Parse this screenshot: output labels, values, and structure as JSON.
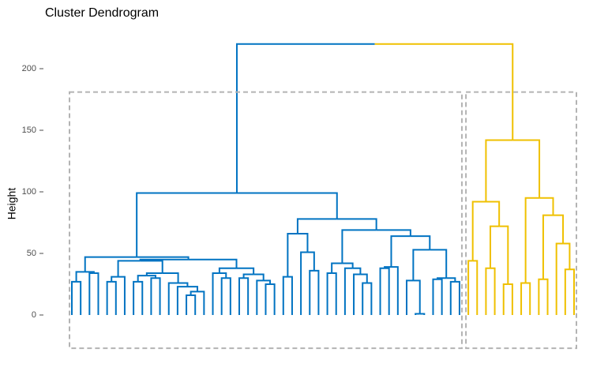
{
  "chart_data": {
    "type": "dendrogram",
    "title": "Cluster Dendrogram",
    "y_label": "Height",
    "ylim": [
      -30,
      230
    ],
    "yticks": [
      0,
      50,
      100,
      150,
      200
    ],
    "cluster_colors": [
      "#0073C2",
      "#EFC000"
    ],
    "rect_border": "#b3b3b3",
    "rect_ylim": [
      -27,
      181
    ],
    "tree": {
      "height": 220,
      "children": [
        {
          "height": 99,
          "children": [
            {
              "height": 47,
              "children": [
                {
                  "height": 35,
                  "children": [
                    {
                      "height": 27,
                      "children": [
                        0,
                        0
                      ]
                    },
                    {
                      "height": 34,
                      "children": [
                        0,
                        0
                      ]
                    }
                  ]
                },
                {
                  "height": 45,
                  "children": [
                    {
                      "height": 44,
                      "children": [
                        {
                          "height": 31,
                          "children": [
                            {
                              "height": 27,
                              "children": [
                                0,
                                0
                              ]
                            },
                            0
                          ]
                        },
                        {
                          "height": 34,
                          "children": [
                            {
                              "height": 32,
                              "children": [
                                {
                                  "height": 27,
                                  "children": [
                                    0,
                                    0
                                  ]
                                },
                                {
                                  "height": 30,
                                  "children": [
                                    0,
                                    0
                                  ]
                                }
                              ]
                            },
                            {
                              "height": 26,
                              "children": [
                                0,
                                {
                                  "height": 23,
                                  "children": [
                                    0,
                                    {
                                      "height": 19,
                                      "children": [
                                        {
                                          "height": 16,
                                          "children": [
                                            0,
                                            0
                                          ]
                                        },
                                        0
                                      ]
                                    }
                                  ]
                                }
                              ]
                            }
                          ]
                        }
                      ]
                    },
                    {
                      "height": 38,
                      "children": [
                        {
                          "height": 34,
                          "children": [
                            0,
                            {
                              "height": 30,
                              "children": [
                                0,
                                0
                              ]
                            }
                          ]
                        },
                        {
                          "height": 33,
                          "children": [
                            {
                              "height": 30,
                              "children": [
                                0,
                                0
                              ]
                            },
                            {
                              "height": 28,
                              "children": [
                                0,
                                {
                                  "height": 25,
                                  "children": [
                                    0,
                                    0
                                  ]
                                }
                              ]
                            }
                          ]
                        }
                      ]
                    }
                  ]
                }
              ]
            },
            {
              "height": 78,
              "children": [
                {
                  "height": 66,
                  "children": [
                    {
                      "height": 31,
                      "children": [
                        0,
                        0
                      ]
                    },
                    {
                      "height": 51,
                      "children": [
                        0,
                        {
                          "height": 36,
                          "children": [
                            0,
                            0
                          ]
                        }
                      ]
                    }
                  ]
                },
                {
                  "height": 69,
                  "children": [
                    {
                      "height": 42,
                      "children": [
                        {
                          "height": 34,
                          "children": [
                            0,
                            0
                          ]
                        },
                        {
                          "height": 38,
                          "children": [
                            0,
                            {
                              "height": 33,
                              "children": [
                                0,
                                {
                                  "height": 26,
                                  "children": [
                                    0,
                                    0
                                  ]
                                }
                              ]
                            }
                          ]
                        }
                      ]
                    },
                    {
                      "height": 64,
                      "children": [
                        {
                          "height": 39,
                          "children": [
                            {
                              "height": 38,
                              "children": [
                                0,
                                0
                              ]
                            },
                            0
                          ]
                        },
                        {
                          "height": 53,
                          "children": [
                            {
                              "height": 28,
                              "children": [
                                0,
                                {
                                  "height": 1,
                                  "children": [
                                    0,
                                    0
                                  ]
                                }
                              ]
                            },
                            {
                              "height": 30,
                              "children": [
                                {
                                  "height": 29,
                                  "children": [
                                    0,
                                    0
                                  ]
                                },
                                {
                                  "height": 27,
                                  "children": [
                                    0,
                                    0
                                  ]
                                }
                              ]
                            }
                          ]
                        }
                      ]
                    }
                  ]
                }
              ]
            }
          ]
        },
        {
          "height": 142,
          "children": [
            {
              "height": 92,
              "children": [
                {
                  "height": 44,
                  "children": [
                    0,
                    0
                  ]
                },
                {
                  "height": 72,
                  "children": [
                    {
                      "height": 38,
                      "children": [
                        0,
                        0
                      ]
                    },
                    {
                      "height": 25,
                      "children": [
                        0,
                        0
                      ]
                    }
                  ]
                }
              ]
            },
            {
              "height": 95,
              "children": [
                {
                  "height": 26,
                  "children": [
                    0,
                    0
                  ]
                },
                {
                  "height": 81,
                  "children": [
                    {
                      "height": 29,
                      "children": [
                        0,
                        0
                      ]
                    },
                    {
                      "height": 58,
                      "children": [
                        0,
                        {
                          "height": 37,
                          "children": [
                            0,
                            0
                          ]
                        }
                      ]
                    }
                  ]
                }
              ]
            }
          ]
        }
      ]
    }
  }
}
